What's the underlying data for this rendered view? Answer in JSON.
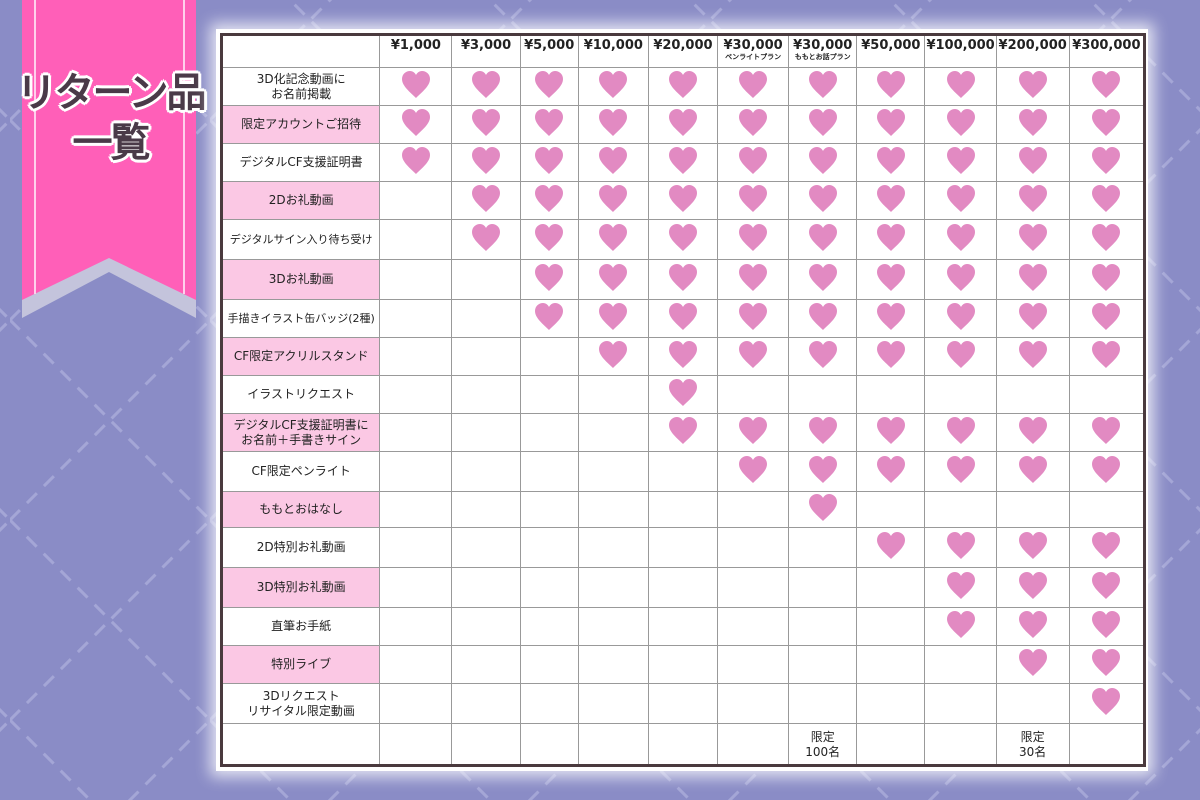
{
  "title": {
    "line1": "リターン品",
    "line2": "一覧"
  },
  "colors": {
    "background": "#8a8cc6",
    "ribbon": "#ff5fb8",
    "heart": "#e28ac2",
    "label_highlight": "#fbc8e4"
  },
  "columns": [
    {
      "price": "¥1,000",
      "sub": ""
    },
    {
      "price": "¥3,000",
      "sub": ""
    },
    {
      "price": "¥5,000",
      "sub": ""
    },
    {
      "price": "¥10,000",
      "sub": ""
    },
    {
      "price": "¥20,000",
      "sub": ""
    },
    {
      "price": "¥30,000",
      "sub": "ペンライトプラン"
    },
    {
      "price": "¥30,000",
      "sub": "ももとお話プラン"
    },
    {
      "price": "¥50,000",
      "sub": ""
    },
    {
      "price": "¥100,000",
      "sub": ""
    },
    {
      "price": "¥200,000",
      "sub": ""
    },
    {
      "price": "¥300,000",
      "sub": ""
    }
  ],
  "rows": [
    {
      "label": "3D化記念動画に\nお名前掲載",
      "hearts": [
        1,
        1,
        1,
        1,
        1,
        1,
        1,
        1,
        1,
        1,
        1
      ]
    },
    {
      "label": "限定アカウントご招待",
      "hearts": [
        1,
        1,
        1,
        1,
        1,
        1,
        1,
        1,
        1,
        1,
        1
      ]
    },
    {
      "label": "デジタルCF支援証明書",
      "hearts": [
        1,
        1,
        1,
        1,
        1,
        1,
        1,
        1,
        1,
        1,
        1
      ]
    },
    {
      "label": "2Dお礼動画",
      "hearts": [
        0,
        1,
        1,
        1,
        1,
        1,
        1,
        1,
        1,
        1,
        1
      ]
    },
    {
      "label": "デジタルサイン入り待ち受け",
      "hearts": [
        0,
        1,
        1,
        1,
        1,
        1,
        1,
        1,
        1,
        1,
        1
      ]
    },
    {
      "label": "3Dお礼動画",
      "hearts": [
        0,
        0,
        1,
        1,
        1,
        1,
        1,
        1,
        1,
        1,
        1
      ]
    },
    {
      "label": "手描きイラスト缶バッジ(2種)",
      "hearts": [
        0,
        0,
        1,
        1,
        1,
        1,
        1,
        1,
        1,
        1,
        1
      ]
    },
    {
      "label": "CF限定アクリルスタンド",
      "hearts": [
        0,
        0,
        0,
        1,
        1,
        1,
        1,
        1,
        1,
        1,
        1
      ]
    },
    {
      "label": "イラストリクエスト",
      "hearts": [
        0,
        0,
        0,
        0,
        1,
        0,
        0,
        0,
        0,
        0,
        0
      ]
    },
    {
      "label": "デジタルCF支援証明書に\nお名前＋手書きサイン",
      "hearts": [
        0,
        0,
        0,
        0,
        1,
        1,
        1,
        1,
        1,
        1,
        1
      ]
    },
    {
      "label": "CF限定ペンライト",
      "hearts": [
        0,
        0,
        0,
        0,
        0,
        1,
        1,
        1,
        1,
        1,
        1
      ]
    },
    {
      "label": "ももとおはなし",
      "hearts": [
        0,
        0,
        0,
        0,
        0,
        0,
        1,
        0,
        0,
        0,
        0
      ]
    },
    {
      "label": "2D特別お礼動画",
      "hearts": [
        0,
        0,
        0,
        0,
        0,
        0,
        0,
        1,
        1,
        1,
        1
      ]
    },
    {
      "label": "3D特別お礼動画",
      "hearts": [
        0,
        0,
        0,
        0,
        0,
        0,
        0,
        0,
        1,
        1,
        1
      ]
    },
    {
      "label": "直筆お手紙",
      "hearts": [
        0,
        0,
        0,
        0,
        0,
        0,
        0,
        0,
        1,
        1,
        1
      ]
    },
    {
      "label": "特別ライブ",
      "hearts": [
        0,
        0,
        0,
        0,
        0,
        0,
        0,
        0,
        0,
        1,
        1
      ]
    },
    {
      "label": "3Dリクエスト\nリサイタル限定動画",
      "hearts": [
        0,
        0,
        0,
        0,
        0,
        0,
        0,
        0,
        0,
        0,
        1
      ]
    }
  ],
  "limits": [
    "",
    "",
    "",
    "",
    "",
    "",
    "限定\n100名",
    "",
    "",
    "限定\n30名",
    ""
  ]
}
